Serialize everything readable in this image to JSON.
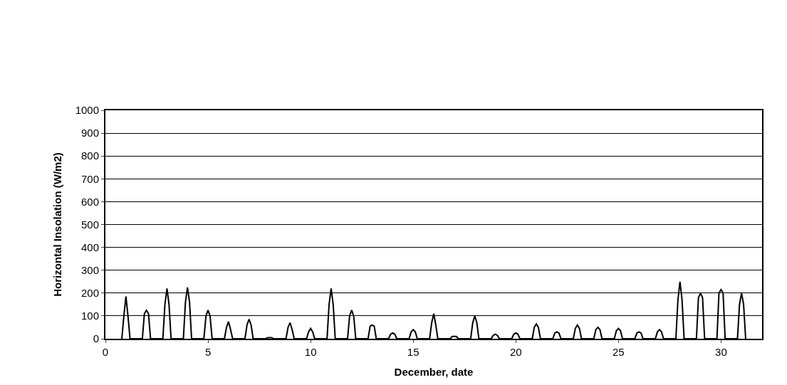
{
  "chart_data": {
    "type": "line",
    "xlabel": "December, date",
    "ylabel": "Horizontal Insolation (W/m2)",
    "x": [
      0.8,
      0.9,
      1,
      1.1,
      1.2,
      1.8,
      1.9,
      2,
      2.1,
      2.2,
      2.8,
      2.9,
      3,
      3.1,
      3.2,
      3.8,
      3.9,
      4,
      4.1,
      4.2,
      4.8,
      4.9,
      5,
      5.1,
      5.2,
      5.8,
      5.9,
      6,
      6.1,
      6.2,
      6.8,
      6.9,
      7,
      7.1,
      7.2,
      7.8,
      7.9,
      8,
      8.1,
      8.2,
      8.8,
      8.9,
      9,
      9.1,
      9.2,
      9.8,
      9.9,
      10,
      10.1,
      10.2,
      10.8,
      10.9,
      11,
      11.1,
      11.2,
      11.8,
      11.9,
      12,
      12.1,
      12.2,
      12.8,
      12.9,
      13,
      13.1,
      13.2,
      13.8,
      13.9,
      14,
      14.1,
      14.2,
      14.8,
      14.9,
      15,
      15.1,
      15.2,
      15.8,
      15.9,
      16,
      16.1,
      16.2,
      16.8,
      16.9,
      17,
      17.1,
      17.2,
      17.8,
      17.9,
      18,
      18.1,
      18.2,
      18.8,
      18.9,
      19,
      19.1,
      19.2,
      19.8,
      19.9,
      20,
      20.1,
      20.2,
      20.8,
      20.9,
      21,
      21.1,
      21.2,
      21.8,
      21.9,
      22,
      22.1,
      22.2,
      22.8,
      22.9,
      23,
      23.1,
      23.2,
      23.8,
      23.9,
      24,
      24.1,
      24.2,
      24.8,
      24.9,
      25,
      25.1,
      25.2,
      25.8,
      25.9,
      26,
      26.1,
      26.2,
      26.8,
      26.9,
      27,
      27.1,
      27.2,
      27.8,
      27.9,
      28,
      28.1,
      28.2,
      28.8,
      28.9,
      29,
      29.1,
      29.2,
      29.8,
      29.9,
      30,
      30.1,
      30.2,
      30.8,
      30.9,
      31,
      31.1,
      31.2
    ],
    "series": [
      {
        "color": "#000000",
        "values": [
          0,
          100,
          185,
          100,
          0,
          0,
          110,
          125,
          110,
          0,
          0,
          150,
          220,
          150,
          0,
          0,
          160,
          225,
          160,
          0,
          0,
          100,
          125,
          100,
          0,
          0,
          50,
          75,
          40,
          0,
          0,
          60,
          85,
          60,
          0,
          0,
          5,
          5,
          5,
          0,
          0,
          50,
          70,
          40,
          0,
          0,
          30,
          45,
          30,
          0,
          0,
          150,
          220,
          150,
          0,
          0,
          100,
          125,
          100,
          0,
          0,
          55,
          60,
          55,
          0,
          0,
          20,
          25,
          20,
          0,
          0,
          30,
          40,
          30,
          0,
          0,
          70,
          110,
          60,
          0,
          0,
          10,
          10,
          10,
          0,
          0,
          70,
          100,
          70,
          0,
          0,
          15,
          20,
          15,
          0,
          0,
          20,
          25,
          20,
          0,
          0,
          50,
          65,
          50,
          0,
          0,
          25,
          30,
          25,
          0,
          0,
          45,
          60,
          45,
          0,
          0,
          40,
          50,
          40,
          0,
          0,
          35,
          45,
          35,
          0,
          0,
          25,
          30,
          25,
          0,
          0,
          30,
          40,
          30,
          0,
          0,
          170,
          250,
          170,
          0,
          0,
          180,
          200,
          180,
          0,
          0,
          200,
          215,
          200,
          0,
          0,
          150,
          200,
          150,
          0
        ]
      }
    ],
    "xlim": [
      0,
      32
    ],
    "xticks": [
      0,
      5,
      10,
      15,
      20,
      25,
      30
    ],
    "ylim": [
      0,
      1000
    ],
    "yticks": [
      0,
      100,
      200,
      300,
      400,
      500,
      600,
      700,
      800,
      900,
      1000
    ],
    "grid": "y",
    "marker": "none",
    "line_style": "solid",
    "legend": false
  }
}
